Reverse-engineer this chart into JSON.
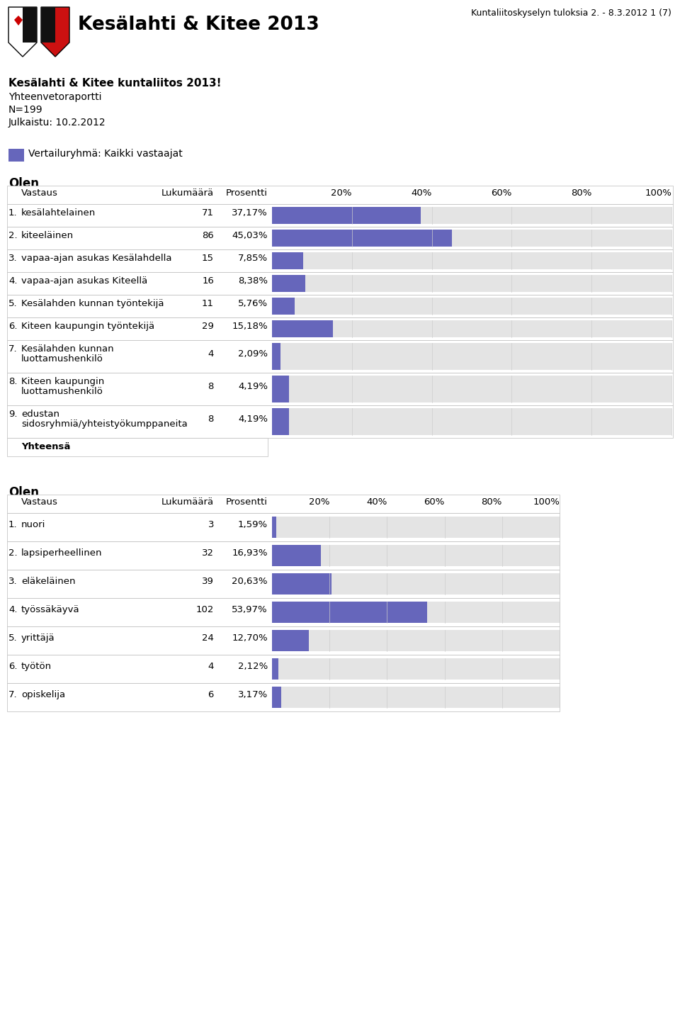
{
  "header_title": "Kesälahti & Kitee 2013",
  "header_subtitle": "Kuntaliitoskyselyn tuloksia 2. - 8.3.2012 1 (7)",
  "bold_title": "Kesälahti & Kitee kuntaliitos 2013!",
  "subtitle_lines": [
    "Yhteenvetoraportti",
    "N=199",
    "Julkaistu: 10.2.2012"
  ],
  "legend_color": "#6666bb",
  "legend_label": "Vertailuryhmä: Kaikki vastaajat",
  "table1_title": "Olen",
  "table1_rows": [
    {
      "num": "1.",
      "label": "kesälahtelainen",
      "label2": "",
      "count": 71,
      "pct": "37,17%",
      "val": 37.17
    },
    {
      "num": "2.",
      "label": "kiteeläinen",
      "label2": "",
      "count": 86,
      "pct": "45,03%",
      "val": 45.03
    },
    {
      "num": "3.",
      "label": "vapaa-ajan asukas Kesälahdella",
      "label2": "",
      "count": 15,
      "pct": "7,85%",
      "val": 7.85
    },
    {
      "num": "4.",
      "label": "vapaa-ajan asukas Kiteellä",
      "label2": "",
      "count": 16,
      "pct": "8,38%",
      "val": 8.38
    },
    {
      "num": "5.",
      "label": "Kesälahden kunnan työntekijä",
      "label2": "",
      "count": 11,
      "pct": "5,76%",
      "val": 5.76
    },
    {
      "num": "6.",
      "label": "Kiteen kaupungin työntekijä",
      "label2": "",
      "count": 29,
      "pct": "15,18%",
      "val": 15.18
    },
    {
      "num": "7.",
      "label": "Kesälahden kunnan",
      "label2": "luottamushenkilö",
      "count": 4,
      "pct": "2,09%",
      "val": 2.09
    },
    {
      "num": "8.",
      "label": "Kiteen kaupungin",
      "label2": "luottamushenkilö",
      "count": 8,
      "pct": "4,19%",
      "val": 4.19
    },
    {
      "num": "9.",
      "label": "edustan",
      "label2": "sidosryhmiä/yhteistyökumppaneita",
      "count": 8,
      "pct": "4,19%",
      "val": 4.19
    }
  ],
  "table1_footer": "Yhteensä",
  "table2_title": "Olen",
  "table2_rows": [
    {
      "num": "1.",
      "label": "nuori",
      "count": 3,
      "pct": "1,59%",
      "val": 1.59
    },
    {
      "num": "2.",
      "label": "lapsiperheellinen",
      "count": 32,
      "pct": "16,93%",
      "val": 16.93
    },
    {
      "num": "3.",
      "label": "eläkeläinen",
      "count": 39,
      "pct": "20,63%",
      "val": 20.63
    },
    {
      "num": "4.",
      "label": "työssäkäyvä",
      "count": 102,
      "pct": "53,97%",
      "val": 53.97
    },
    {
      "num": "5.",
      "label": "yrittäjä",
      "count": 24,
      "pct": "12,70%",
      "val": 12.7
    },
    {
      "num": "6.",
      "label": "työtön",
      "count": 4,
      "pct": "2,12%",
      "val": 2.12
    },
    {
      "num": "7.",
      "label": "opiskelija",
      "count": 6,
      "pct": "3,17%",
      "val": 3.17
    }
  ],
  "bar_color": "#6666bb",
  "bar_bg_color": "#e4e4e4",
  "table_border_color": "#bbbbbb",
  "bg_color": "#ffffff",
  "pct_labels": [
    "20%",
    "40%",
    "60%",
    "80%",
    "100%"
  ]
}
